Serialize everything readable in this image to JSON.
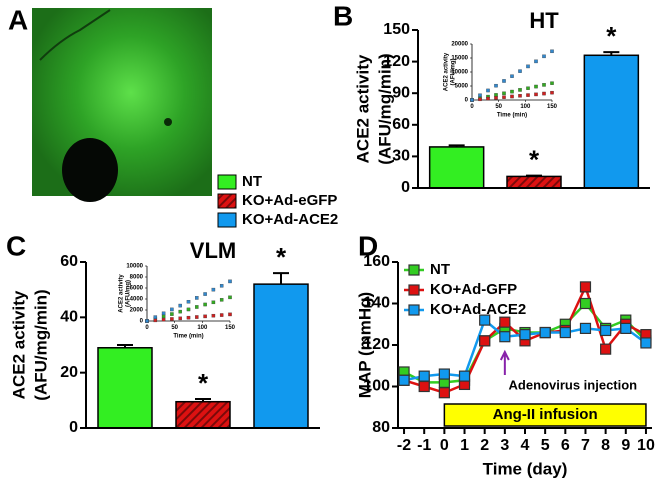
{
  "chart_data": [
    {
      "type": "image",
      "panel": "A"
    },
    {
      "type": "bar",
      "panel": "B",
      "title": "HT",
      "ylabel": [
        "ACE2 activity",
        "(AFU/mg/min)"
      ],
      "categories": [
        "NT",
        "KO+Ad-eGFP",
        "KO+Ad-ACE2"
      ],
      "values": [
        39,
        11,
        126
      ],
      "errors": [
        1.5,
        0.8,
        3
      ],
      "colors": [
        "#33ee22",
        "#dd1111",
        "#1199ee"
      ],
      "hatch": [
        false,
        true,
        false
      ],
      "significance": [
        null,
        "*",
        "*"
      ],
      "ylim": [
        0,
        150
      ],
      "yticks": [
        0,
        30,
        60,
        90,
        120,
        150
      ]
    },
    {
      "type": "inset",
      "xlabel": "Time (min)",
      "ylabel": [
        "ACE2 activity",
        "(AFU/mg)"
      ],
      "x": [
        0,
        15,
        30,
        45,
        60,
        75,
        90,
        105,
        120,
        135,
        150
      ],
      "series": [
        {
          "color": "#33aa22",
          "values": [
            0,
            600,
            1200,
            1800,
            2400,
            3000,
            3600,
            4200,
            4800,
            5400,
            6000
          ]
        },
        {
          "color": "#cc2222",
          "values": [
            0,
            250,
            500,
            750,
            1000,
            1250,
            1500,
            1750,
            2000,
            2300,
            2600
          ]
        },
        {
          "color": "#3388cc",
          "values": [
            0,
            1700,
            3400,
            5100,
            6800,
            8500,
            10300,
            12000,
            13800,
            15600,
            17400
          ]
        }
      ],
      "xlim": [
        0,
        150
      ],
      "xticks": [
        0,
        50,
        100,
        150
      ],
      "ylim": [
        0,
        20000
      ],
      "yticks": [
        0,
        5000,
        10000,
        15000,
        20000
      ]
    },
    {
      "type": "bar",
      "panel": "C",
      "title": "VLM",
      "ylabel": [
        "ACE2 activity",
        "(AFU/mg/min)"
      ],
      "values": [
        29,
        9.5,
        52
      ],
      "errors": [
        1,
        1,
        4
      ],
      "colors": [
        "#33ee22",
        "#dd1111",
        "#1199ee"
      ],
      "hatch": [
        false,
        true,
        false
      ],
      "significance": [
        null,
        "*",
        "*"
      ],
      "ylim": [
        0,
        60
      ],
      "yticks": [
        0,
        20,
        40,
        60
      ]
    },
    {
      "type": "inset",
      "xlabel": "Time (min)",
      "ylabel": [
        "ACE2 activity",
        "(AFU/mg)"
      ],
      "x": [
        0,
        15,
        30,
        45,
        60,
        75,
        90,
        105,
        120,
        135,
        150
      ],
      "series": [
        {
          "color": "#33aa22",
          "values": [
            0,
            420,
            840,
            1260,
            1700,
            2100,
            2550,
            3000,
            3400,
            3850,
            4300
          ]
        },
        {
          "color": "#cc2222",
          "values": [
            0,
            120,
            240,
            360,
            480,
            600,
            720,
            840,
            960,
            1080,
            1200
          ]
        },
        {
          "color": "#3388cc",
          "values": [
            0,
            700,
            1400,
            2100,
            2800,
            3500,
            4200,
            4900,
            5700,
            6400,
            7200
          ]
        }
      ],
      "xlim": [
        0,
        150
      ],
      "xticks": [
        0,
        50,
        100,
        150
      ],
      "ylim": [
        0,
        10000
      ],
      "yticks": [
        0,
        2000,
        4000,
        6000,
        8000,
        10000
      ]
    },
    {
      "type": "line",
      "panel": "D",
      "xlabel": "Time (day)",
      "ylabel": "MAP (mmHg)",
      "x": [
        -2,
        -1,
        0,
        1,
        2,
        3,
        4,
        5,
        6,
        7,
        8,
        9,
        10
      ],
      "series": [
        {
          "name": "NT",
          "color": "#33cc22",
          "values": [
            107,
            102,
            102,
            103,
            122,
            128,
            126,
            126,
            130,
            140,
            128,
            132,
            122
          ]
        },
        {
          "name": "KO+Ad-GFP",
          "color": "#dd1111",
          "values": [
            103,
            100,
            97,
            101,
            122,
            131,
            122,
            126,
            127,
            148,
            118,
            130,
            125
          ]
        },
        {
          "name": "KO+Ad-ACE2",
          "color": "#1199ee",
          "values": [
            103,
            105,
            106,
            105,
            132,
            124,
            125,
            126,
            126,
            128,
            127,
            128,
            121
          ]
        }
      ],
      "injection": {
        "label": "Adenovirus injection",
        "x": 3
      },
      "infusion": {
        "label": "Ang-II infusion",
        "start": 0,
        "end": 10
      },
      "xlim": [
        -2.3,
        10.3
      ],
      "xticks": [
        -2,
        -1,
        0,
        1,
        2,
        3,
        4,
        5,
        6,
        7,
        8,
        9,
        10
      ],
      "ylim": [
        80,
        160
      ],
      "yticks": [
        80,
        100,
        120,
        140,
        160
      ]
    }
  ]
}
